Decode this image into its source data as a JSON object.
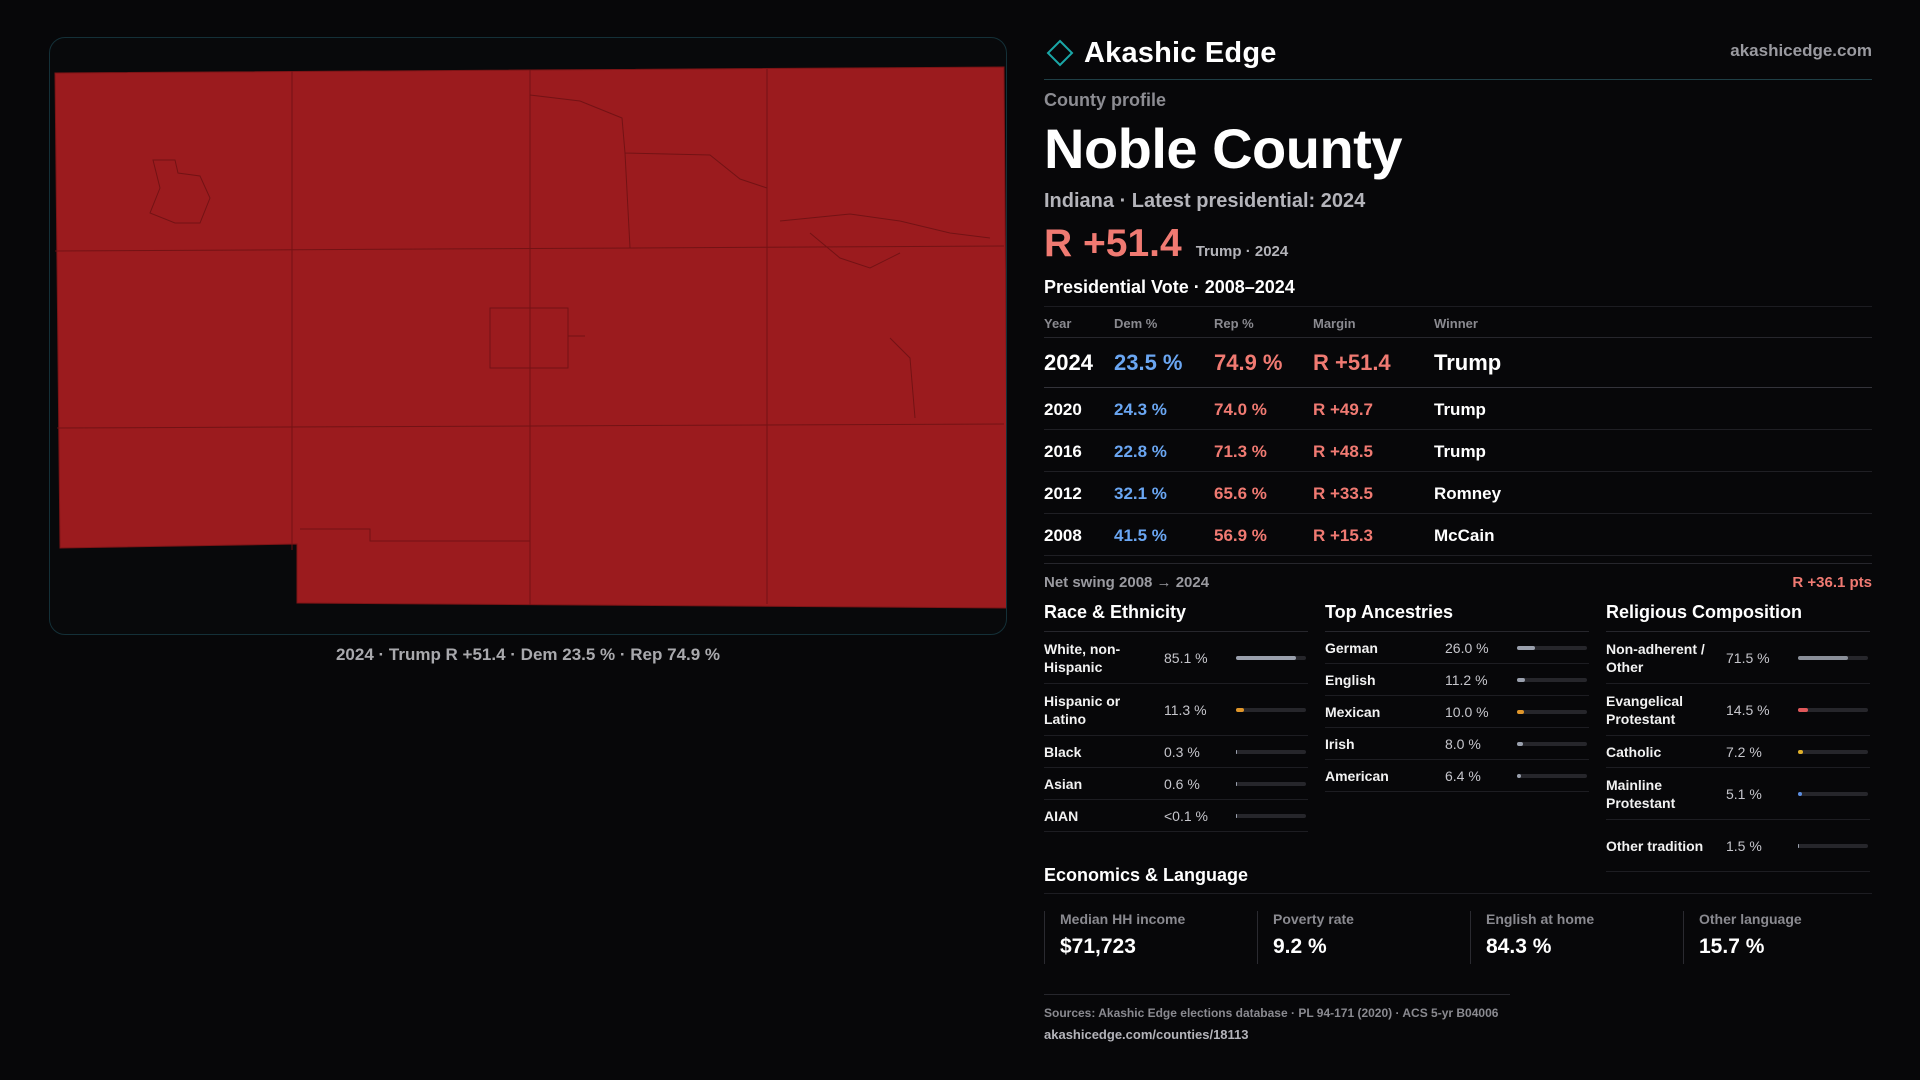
{
  "brand": {
    "name": "Akashic Edge",
    "site": "akashicedge.com"
  },
  "profile": {
    "kicker": "County profile",
    "county": "Noble County",
    "subtitle": "Indiana · Latest presidential: 2024",
    "headline_margin": "R +51.4",
    "headline_note": "Trump · 2024"
  },
  "map": {
    "fill_color": "#9b1b1e",
    "caption": "2024 · Trump R +51.4 · Dem 23.5 % · Rep 74.9 %"
  },
  "colors": {
    "dem": "#6aa6f2",
    "rep": "#f07a72",
    "accent": "#1aa7a7"
  },
  "vote": {
    "title": "Presidential Vote · 2008–2024",
    "headers": {
      "year": "Year",
      "dem": "Dem %",
      "rep": "Rep %",
      "margin": "Margin",
      "winner": "Winner"
    },
    "rows": [
      {
        "year": "2024",
        "dem": "23.5 %",
        "rep": "74.9 %",
        "margin": "R +51.4",
        "winner": "Trump"
      },
      {
        "year": "2020",
        "dem": "24.3 %",
        "rep": "74.0 %",
        "margin": "R +49.7",
        "winner": "Trump"
      },
      {
        "year": "2016",
        "dem": "22.8 %",
        "rep": "71.3 %",
        "margin": "R +48.5",
        "winner": "Trump"
      },
      {
        "year": "2012",
        "dem": "32.1 %",
        "rep": "65.6 %",
        "margin": "R +33.5",
        "winner": "Romney"
      },
      {
        "year": "2008",
        "dem": "41.5 %",
        "rep": "56.9 %",
        "margin": "R +15.3",
        "winner": "McCain"
      }
    ],
    "swing_label": "Net swing 2008 → 2024",
    "swing_value": "R +36.1 pts"
  },
  "race": {
    "title": "Race & Ethnicity",
    "items": [
      {
        "label": "White, non-Hispanic",
        "value": "85.1 %",
        "share": 0.851,
        "color": "#9aa0ad"
      },
      {
        "label": "Hispanic or Latino",
        "value": "11.3 %",
        "share": 0.113,
        "color": "#e0962a"
      },
      {
        "label": "Black",
        "value": "0.3 %",
        "share": 0.003,
        "color": "#9aa0ad"
      },
      {
        "label": "Asian",
        "value": "0.6 %",
        "share": 0.006,
        "color": "#9aa0ad"
      },
      {
        "label": "AIAN",
        "value": "<0.1 %",
        "share": 0.0,
        "color": "#9aa0ad"
      }
    ]
  },
  "ancestry": {
    "title": "Top Ancestries",
    "items": [
      {
        "label": "German",
        "value": "26.0 %",
        "share": 0.26,
        "color": "#9aa0ad"
      },
      {
        "label": "English",
        "value": "11.2 %",
        "share": 0.112,
        "color": "#9aa0ad"
      },
      {
        "label": "Mexican",
        "value": "10.0 %",
        "share": 0.1,
        "color": "#e0962a"
      },
      {
        "label": "Irish",
        "value": "8.0 %",
        "share": 0.08,
        "color": "#9aa0ad"
      },
      {
        "label": "American",
        "value": "6.4 %",
        "share": 0.064,
        "color": "#9aa0ad"
      }
    ]
  },
  "religion": {
    "title": "Religious Composition",
    "items": [
      {
        "label": "Non-adherent / Other",
        "value": "71.5 %",
        "share": 0.715,
        "color": "#8a8f99"
      },
      {
        "label": "Evangelical Protestant",
        "value": "14.5 %",
        "share": 0.145,
        "color": "#e0585a"
      },
      {
        "label": "Catholic",
        "value": "7.2 %",
        "share": 0.072,
        "color": "#e0b02a"
      },
      {
        "label": "Mainline Protestant",
        "value": "5.1 %",
        "share": 0.051,
        "color": "#5b8de0"
      },
      {
        "label": "Other tradition",
        "value": "1.5 %",
        "share": 0.015,
        "color": "#9aa0ad"
      }
    ]
  },
  "economics": {
    "title": "Economics & Language",
    "cards": [
      {
        "label": "Median HH income",
        "value": "$71,723"
      },
      {
        "label": "Poverty rate",
        "value": "9.2 %"
      },
      {
        "label": "English at home",
        "value": "84.3 %"
      },
      {
        "label": "Other language",
        "value": "15.7 %"
      }
    ]
  },
  "footer": {
    "sources": "Sources: Akashic Edge elections database · PL 94-171 (2020) · ACS 5-yr B04006",
    "url": "akashicedge.com/counties/18113"
  }
}
